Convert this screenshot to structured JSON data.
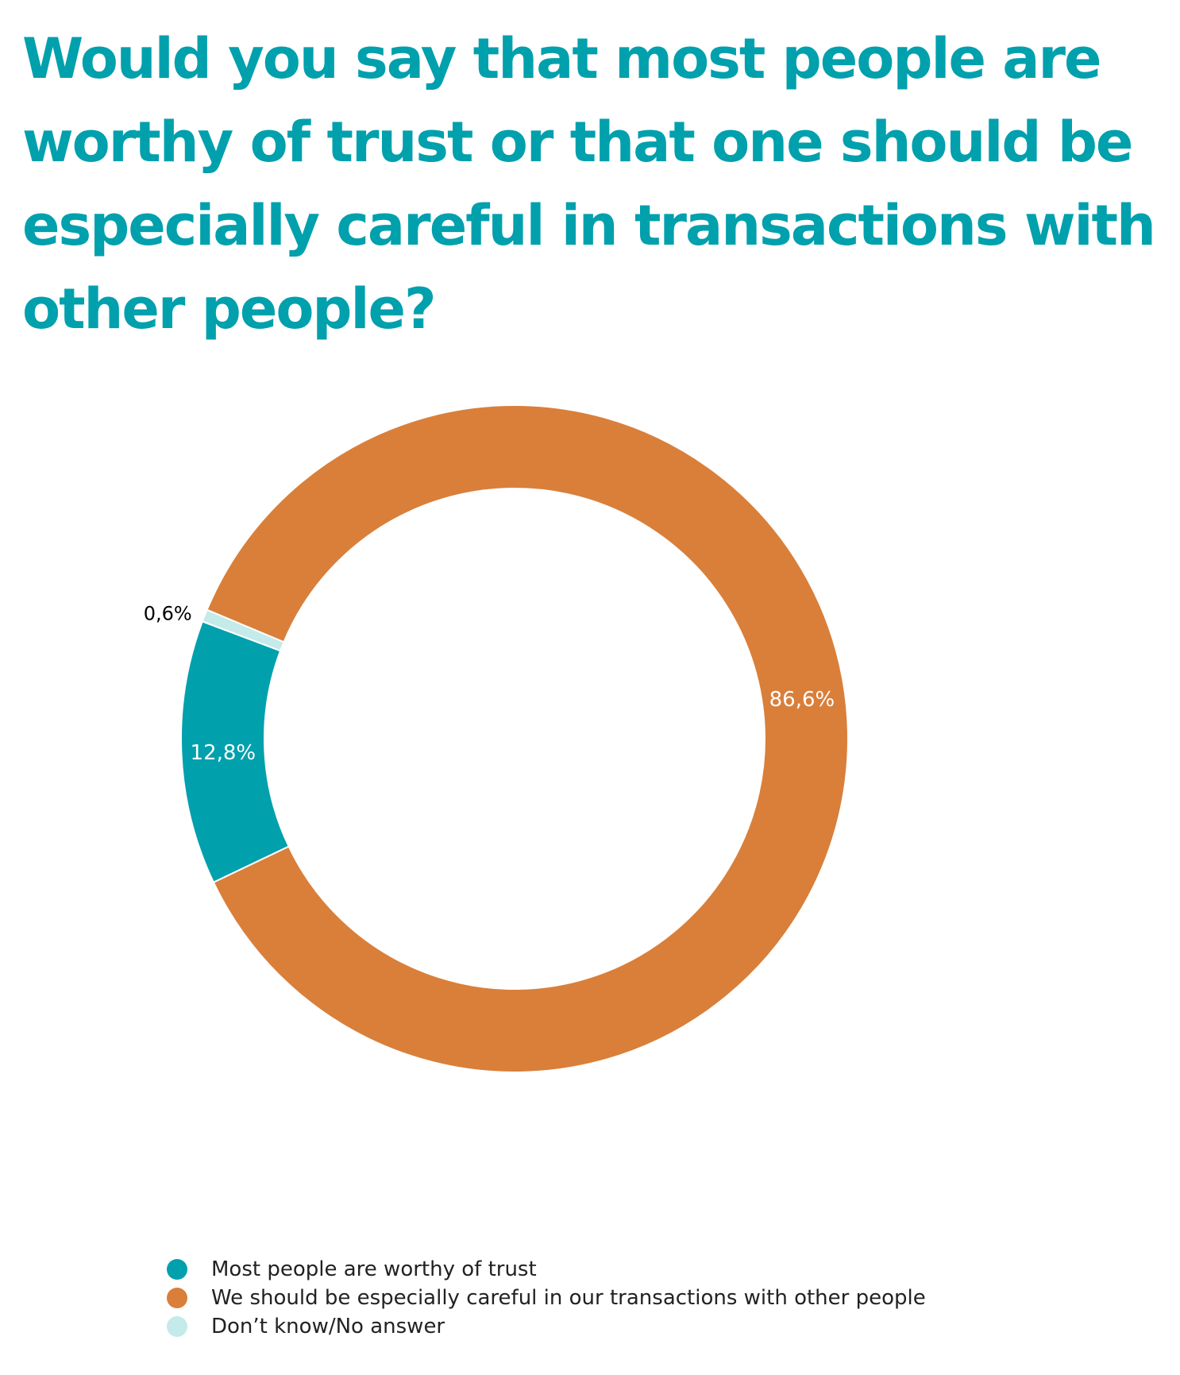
{
  "chart_data": {
    "type": "pie",
    "title": "Would you say that most people are worthy of trust or that one should be especially careful in transactions with other people?",
    "series": [
      {
        "name": "Most people are worthy of trust",
        "value": 12.8,
        "label": "12,8%",
        "color": "#00a0ad"
      },
      {
        "name": "We should be especially careful in our transactions with other people",
        "value": 86.6,
        "label": "86,6%",
        "color": "#d97f3a"
      },
      {
        "name": "Don’t know/No answer",
        "value": 0.6,
        "label": "0,6%",
        "color": "#c4eaea"
      }
    ],
    "legend_position": "bottom"
  },
  "colors": {
    "title": "#00a0ad",
    "label_inside": "#ffffff",
    "label_outside": "#000000",
    "legend_text": "#222222"
  }
}
